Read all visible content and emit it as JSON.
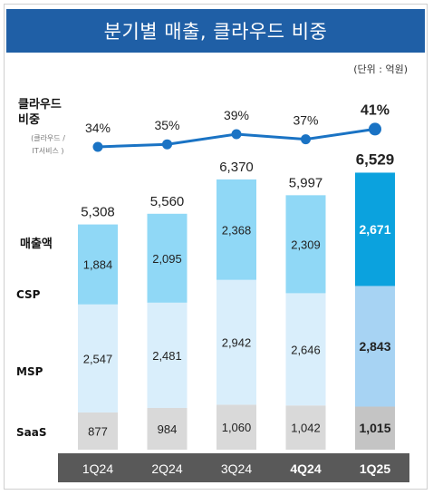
{
  "title": "분기별 매출, 클라우드 비중",
  "unit_note": "(단위 : 억원)",
  "ratio_label": [
    "클라우드",
    "비중"
  ],
  "ratio_note": [
    "(클라우드 /",
    "IT서비스 )"
  ],
  "revenue_label": "매출액",
  "segment_labels": [
    "CSP",
    "MSP",
    "SaaS"
  ],
  "colors": {
    "banner": "#1f5fa6",
    "line": "#1a73c4",
    "csp": "#90d8f6",
    "msp": "#d9eefb",
    "saas": "#d9d9d9",
    "csp_highlight": "#0ba2de",
    "msp_highlight": "#a7d3f3",
    "saas_highlight": "#c4c4c4",
    "axis_bar": "#595959"
  },
  "chart_data": {
    "type": "bar",
    "stacked": true,
    "categories": [
      "1Q24",
      "2Q24",
      "3Q24",
      "4Q24",
      "1Q25"
    ],
    "bold_categories": [
      "4Q24",
      "1Q25"
    ],
    "highlight_category": "1Q25",
    "series": [
      {
        "name": "SaaS",
        "values": [
          877,
          984,
          1060,
          1042,
          1015
        ]
      },
      {
        "name": "MSP",
        "values": [
          2547,
          2481,
          2942,
          2646,
          2843
        ]
      },
      {
        "name": "CSP",
        "values": [
          1884,
          2095,
          2368,
          2309,
          2671
        ]
      }
    ],
    "value_labels": {
      "SaaS": [
        "877",
        "984",
        "1,060",
        "1,042",
        "1,015"
      ],
      "MSP": [
        "2,547",
        "2,481",
        "2,942",
        "2,646",
        "2,843"
      ],
      "CSP": [
        "1,884",
        "2,095",
        "2,368",
        "2,309",
        "2,671"
      ]
    },
    "totals": [
      5308,
      5560,
      6370,
      5997,
      6529
    ],
    "total_labels": [
      "5,308",
      "5,560",
      "6,370",
      "5,997",
      "6,529"
    ],
    "cloud_ratio": {
      "name": "클라우드 비중",
      "values": [
        34,
        35,
        39,
        37,
        41
      ],
      "labels": [
        "34%",
        "35%",
        "39%",
        "37%",
        "41%"
      ]
    }
  }
}
